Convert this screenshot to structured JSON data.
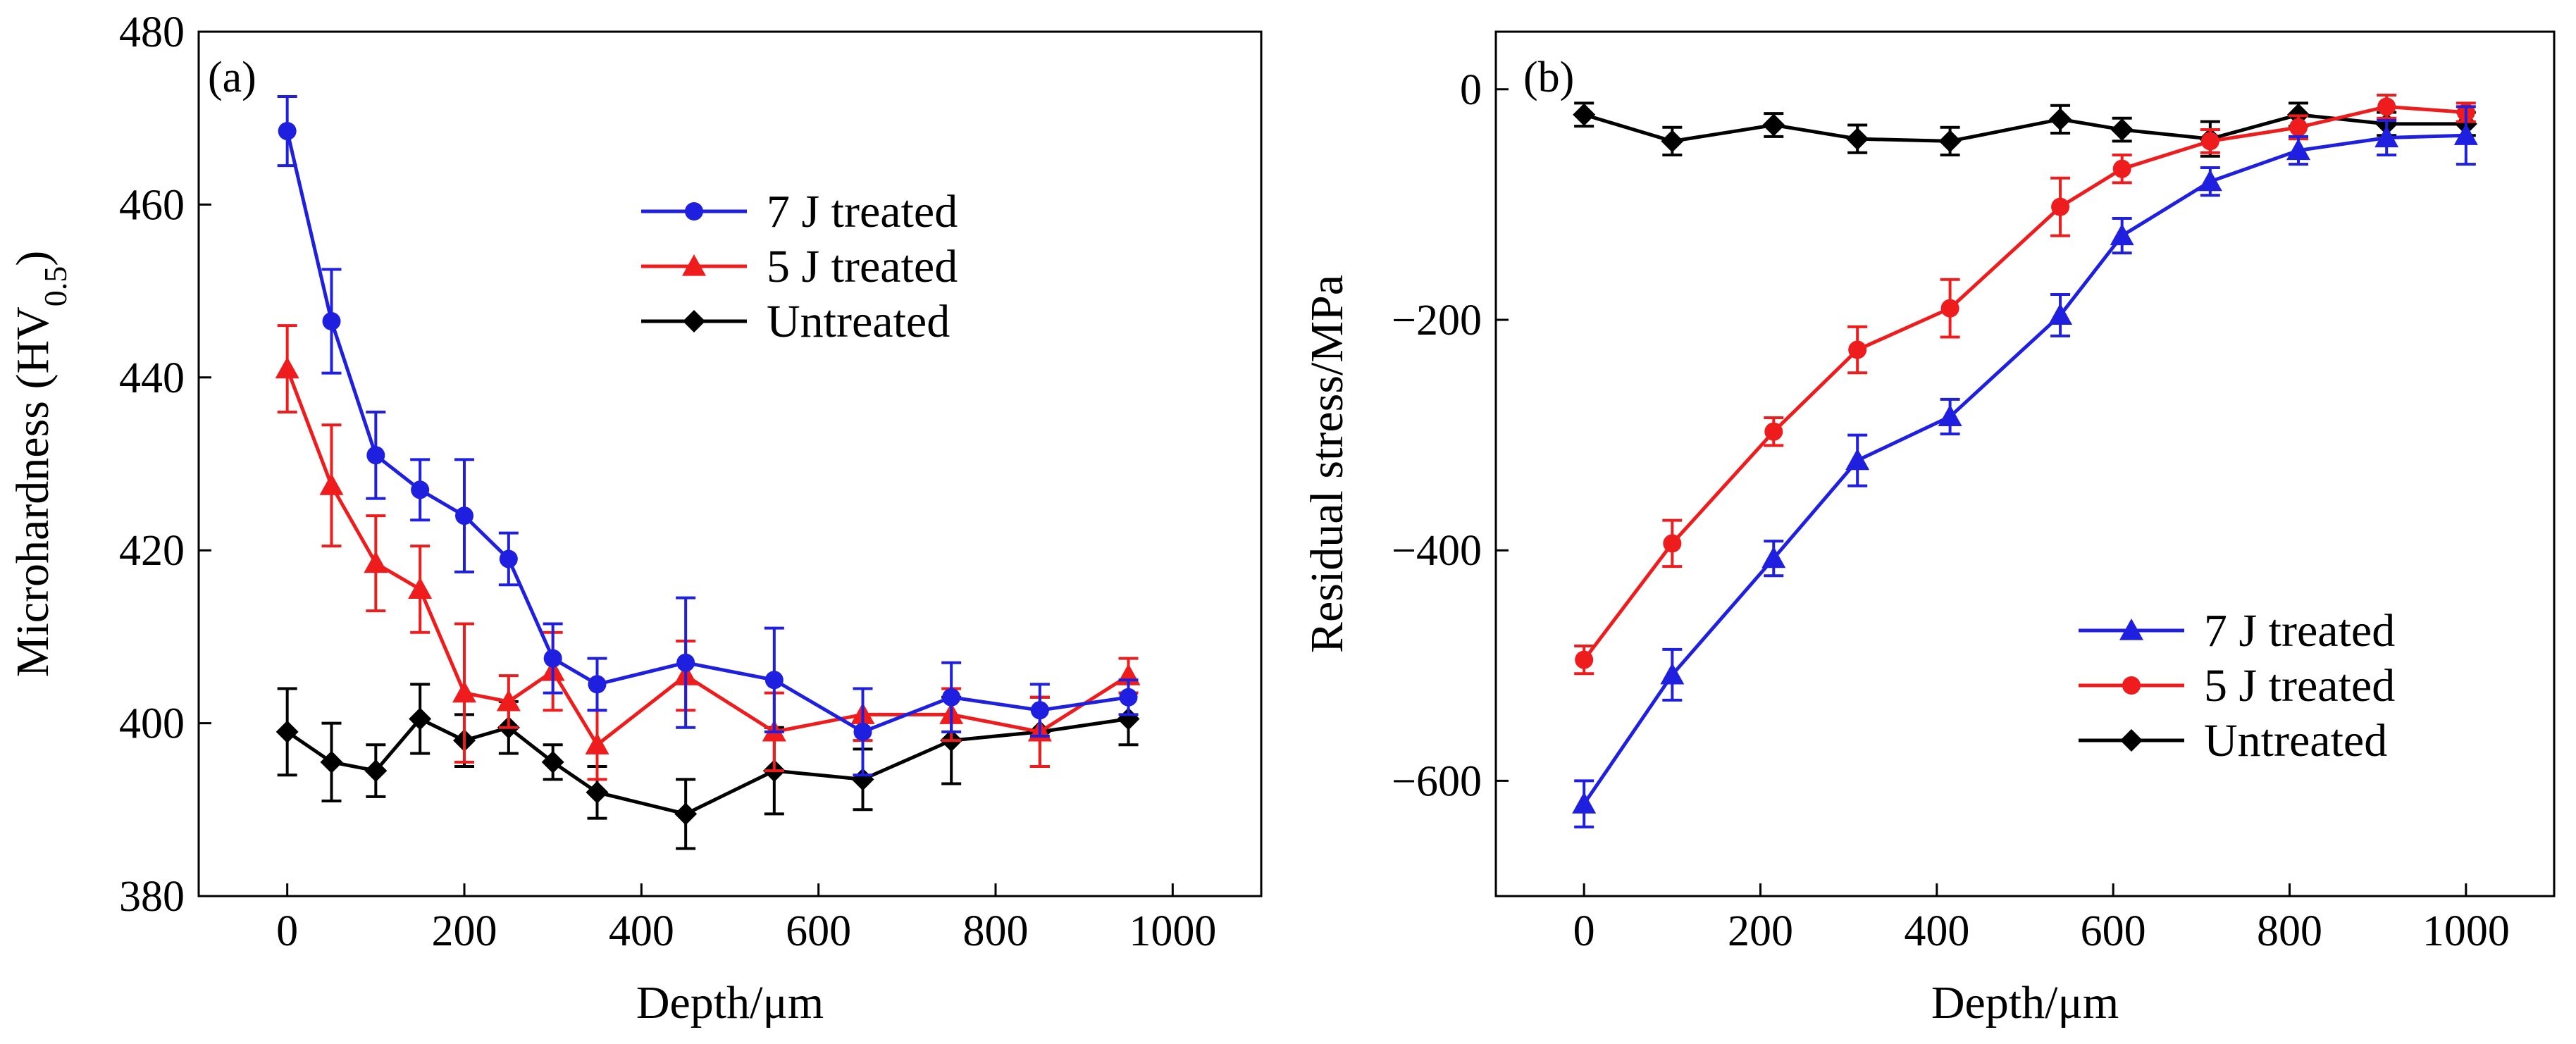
{
  "colors": {
    "blue": "#1f1fe0",
    "red": "#ee1c1c",
    "black": "#000000"
  },
  "chart_data": [
    {
      "type": "line",
      "panel_label": "(a)",
      "xlabel": "Depth/μm",
      "ylabel_main": "Microhardness (HV",
      "ylabel_sub": "0.5",
      "ylabel_close": ")",
      "xlim": [
        -100,
        1100
      ],
      "ylim": [
        380,
        480
      ],
      "xticks": [
        0,
        200,
        400,
        600,
        800,
        1000
      ],
      "yticks": [
        380,
        400,
        420,
        440,
        460,
        480
      ],
      "legend_position": "top-right",
      "series": [
        {
          "name": "7 J treated",
          "color": "blue",
          "marker": "circle",
          "x": [
            0,
            50,
            100,
            150,
            200,
            250,
            300,
            350,
            450,
            550,
            650,
            750,
            850,
            950
          ],
          "y": [
            468.5,
            446.5,
            431,
            427,
            424,
            419,
            407.5,
            404.5,
            407,
            405,
            399,
            403,
            401.5,
            403
          ],
          "err": [
            4,
            6,
            5,
            3.5,
            6.5,
            3,
            4,
            3,
            7.5,
            6,
            5,
            4,
            3,
            2
          ]
        },
        {
          "name": "5 J treated",
          "color": "red",
          "marker": "triangle",
          "x": [
            0,
            50,
            100,
            150,
            200,
            250,
            300,
            350,
            450,
            550,
            650,
            750,
            850,
            950
          ],
          "y": [
            441,
            427.5,
            418.5,
            415.5,
            403.5,
            402.5,
            406,
            397.5,
            405.5,
            399,
            401,
            401,
            399,
            405.5
          ],
          "err": [
            5,
            7,
            5.5,
            5,
            8,
            3,
            4.5,
            4,
            4,
            4.5,
            3,
            3,
            4,
            2
          ]
        },
        {
          "name": "Untreated",
          "color": "black",
          "marker": "diamond",
          "x": [
            0,
            50,
            100,
            150,
            200,
            250,
            300,
            350,
            450,
            550,
            650,
            750,
            850,
            950
          ],
          "y": [
            399,
            395.5,
            394.5,
            400.5,
            398,
            399.5,
            395.5,
            392,
            389.5,
            394.5,
            393.5,
            398,
            399,
            400.5
          ],
          "err": [
            5,
            4.5,
            3,
            4,
            3,
            3,
            2,
            3,
            4,
            5,
            3.5,
            5,
            4,
            3
          ]
        }
      ]
    },
    {
      "type": "line",
      "panel_label": "(b)",
      "xlabel": "Depth/μm",
      "ylabel": "Residual stress/MPa",
      "xlim": [
        -100,
        1100
      ],
      "ylim": [
        -700,
        50
      ],
      "xticks": [
        0,
        200,
        400,
        600,
        800,
        1000
      ],
      "yticks": [
        0,
        -200,
        -400,
        -600
      ],
      "ytick_labels": [
        "0",
        "−200",
        "−400",
        "−600"
      ],
      "legend_position": "bottom-right",
      "series": [
        {
          "name": "7 J treated",
          "color": "blue",
          "marker": "triangle",
          "x": [
            0,
            100,
            215,
            310,
            415,
            540,
            610,
            710,
            810,
            910,
            1000
          ],
          "y": [
            -620,
            -508,
            -407,
            -322,
            -284,
            -196,
            -127,
            -80,
            -53,
            -42,
            -40
          ],
          "err": [
            20,
            22,
            15,
            22,
            15,
            18,
            15,
            12,
            12,
            15,
            25
          ]
        },
        {
          "name": "5 J treated",
          "color": "red",
          "marker": "circle",
          "x": [
            0,
            100,
            215,
            310,
            415,
            540,
            610,
            710,
            810,
            910,
            1000
          ],
          "y": [
            -495,
            -394,
            -297,
            -226,
            -190,
            -102,
            -69,
            -45,
            -33,
            -15,
            -20
          ],
          "err": [
            12,
            20,
            12,
            20,
            25,
            25,
            12,
            10,
            10,
            10,
            8
          ]
        },
        {
          "name": "Untreated",
          "color": "black",
          "marker": "diamond",
          "x": [
            0,
            100,
            215,
            310,
            415,
            540,
            610,
            710,
            810,
            910,
            1000
          ],
          "y": [
            -22,
            -45,
            -31,
            -43,
            -45,
            -26,
            -35,
            -43,
            -22,
            -30,
            -30
          ],
          "err": [
            10,
            12,
            10,
            12,
            12,
            12,
            10,
            15,
            10,
            10,
            10
          ]
        }
      ]
    }
  ]
}
